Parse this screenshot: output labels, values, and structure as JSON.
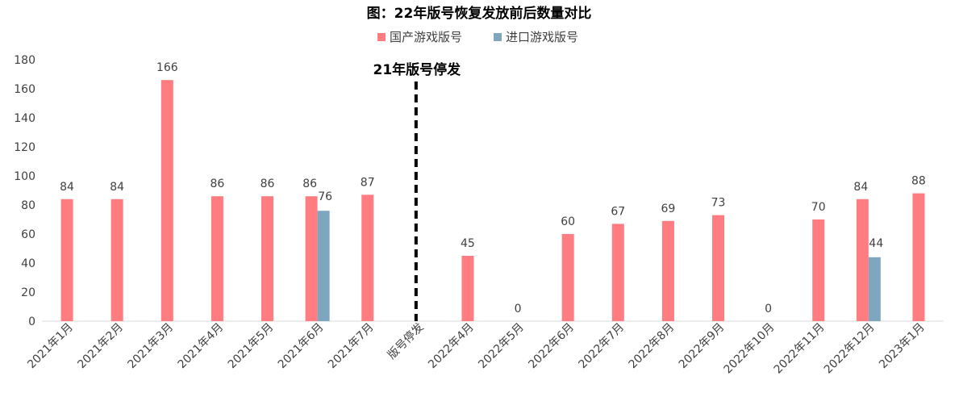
{
  "chart_data": {
    "type": "bar",
    "title": "图：22年版号恢复发放前后数量对比",
    "categories": [
      "2021年1月",
      "2021年2月",
      "2021年3月",
      "2021年4月",
      "2021年5月",
      "2021年6月",
      "2021年7月",
      "版号停发",
      "2022年4月",
      "2022年5月",
      "2022年6月",
      "2022年7月",
      "2022年8月",
      "2022年9月",
      "2022年10月",
      "2022年11月",
      "2022年12月",
      "2023年1月"
    ],
    "series": [
      {
        "name": "国产游戏版号",
        "color": "#FF7C80",
        "values": [
          84,
          84,
          166,
          86,
          86,
          86,
          87,
          null,
          45,
          0,
          60,
          67,
          69,
          73,
          0,
          70,
          84,
          88
        ]
      },
      {
        "name": "进口游戏版号",
        "color": "#7EA6BF",
        "values": [
          null,
          null,
          null,
          null,
          null,
          76,
          null,
          null,
          null,
          null,
          null,
          null,
          null,
          null,
          null,
          null,
          44,
          null
        ]
      }
    ],
    "ylim": [
      0,
      180
    ],
    "yticks": [
      0,
      20,
      40,
      60,
      80,
      100,
      120,
      140,
      160,
      180
    ],
    "legend_position": "top",
    "grid": false,
    "annotation": {
      "text": "21年版号停发",
      "category": "版号停发"
    }
  }
}
